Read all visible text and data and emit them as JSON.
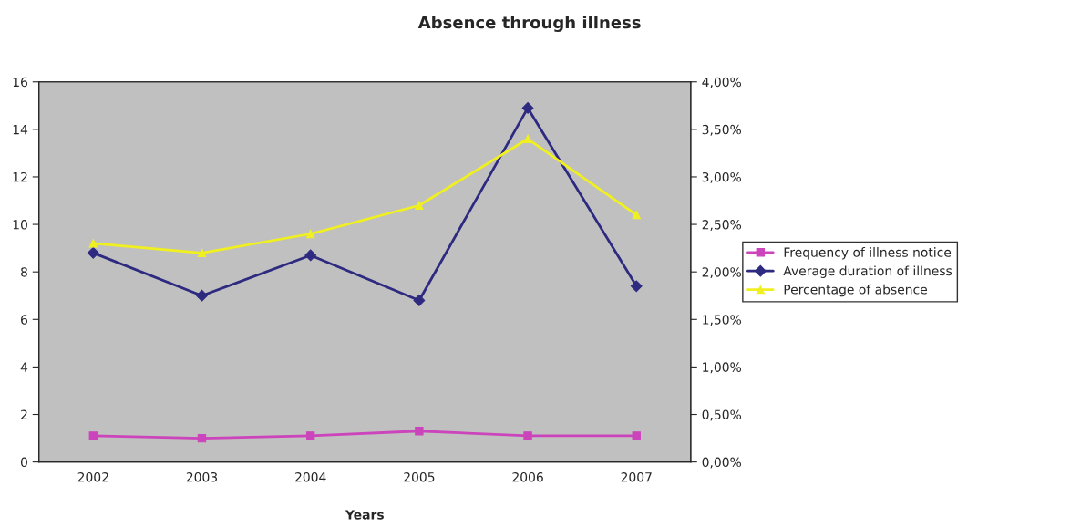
{
  "chart_data": {
    "type": "line",
    "title": "Absence through illness",
    "xlabel": "Years",
    "categories": [
      "2002",
      "2003",
      "2004",
      "2005",
      "2006",
      "2007"
    ],
    "series": [
      {
        "name": "Frequency of illness notice",
        "color": "#cc44bb",
        "marker": "square",
        "values": [
          1.1,
          1.0,
          1.1,
          1.3,
          1.1,
          1.1
        ]
      },
      {
        "name": "Average duration of illness",
        "color": "#2e2a80",
        "marker": "diamond",
        "values": [
          8.8,
          7.0,
          8.7,
          6.8,
          14.9,
          7.4
        ]
      },
      {
        "name": "Percentage of absence",
        "color": "#f0f020",
        "marker": "triangle",
        "axis": "y2",
        "values": [
          2.3,
          2.2,
          2.4,
          2.7,
          3.4,
          2.6
        ]
      }
    ],
    "ylim": [
      0,
      16
    ],
    "yticks": [
      0,
      2,
      4,
      6,
      8,
      10,
      12,
      14,
      16
    ],
    "y2lim": [
      0,
      4
    ],
    "y2ticks": [
      {
        "value": 0,
        "label": "0,00%"
      },
      {
        "value": 0.5,
        "label": "0,50%"
      },
      {
        "value": 1,
        "label": "1,00%"
      },
      {
        "value": 1.5,
        "label": "1,50%"
      },
      {
        "value": 2,
        "label": "2,00%"
      },
      {
        "value": 2.5,
        "label": "2,50%"
      },
      {
        "value": 3,
        "label": "3,00%"
      },
      {
        "value": 3.5,
        "label": "3,50%"
      },
      {
        "value": 4,
        "label": "4,00%"
      }
    ],
    "legend": "right",
    "grid": false
  }
}
